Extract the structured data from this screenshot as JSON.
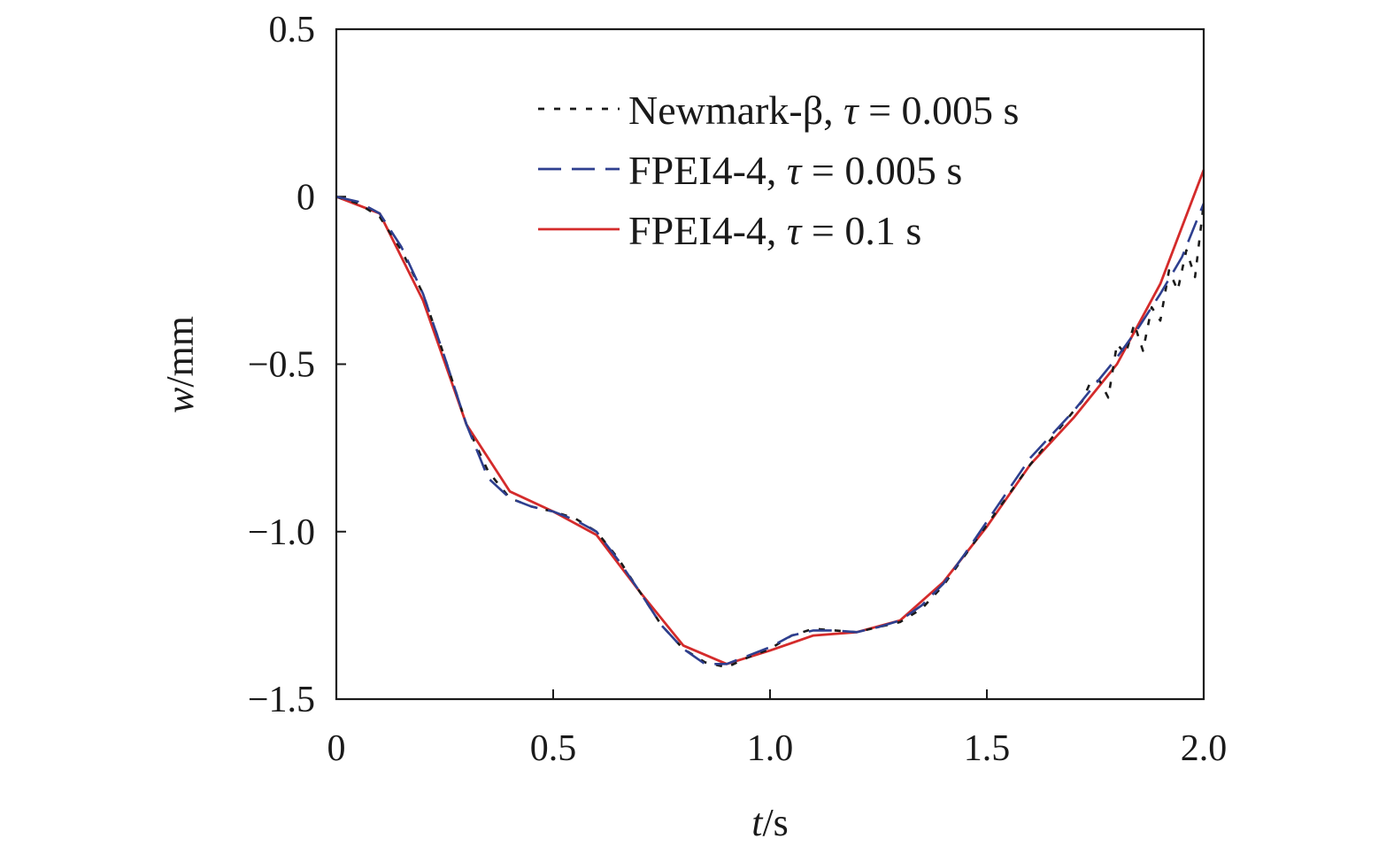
{
  "chart_data": {
    "type": "line",
    "title": "",
    "xlabel": {
      "var": "t",
      "unit": "/s"
    },
    "ylabel": {
      "var": "w",
      "unit": "/mm"
    },
    "xlim": [
      0,
      2.0
    ],
    "ylim": [
      -1.5,
      0.5
    ],
    "xticks": [
      0,
      0.5,
      1.0,
      1.5,
      2.0
    ],
    "xtick_labels": [
      "0",
      "0.5",
      "1.0",
      "1.5",
      "2.0"
    ],
    "yticks": [
      0.5,
      0,
      -0.5,
      -1.0,
      -1.5
    ],
    "ytick_labels": [
      "0.5",
      "0",
      "−0.5",
      "−1.0",
      "−1.5"
    ],
    "grid": false,
    "legend_position": "top-right",
    "series": [
      {
        "name": "Newmark-β, τ = 0.005 s",
        "label_parts": [
          "Newmark-β, ",
          "τ",
          " = 0.005 s"
        ],
        "color": "#1a1a1a",
        "style": "dotted",
        "x": [
          0,
          0.05,
          0.1,
          0.15,
          0.2,
          0.25,
          0.3,
          0.35,
          0.4,
          0.45,
          0.5,
          0.55,
          0.6,
          0.65,
          0.7,
          0.75,
          0.8,
          0.85,
          0.9,
          0.95,
          1.0,
          1.05,
          1.1,
          1.15,
          1.2,
          1.25,
          1.3,
          1.35,
          1.4,
          1.45,
          1.5,
          1.55,
          1.6,
          1.65,
          1.7,
          1.72,
          1.74,
          1.76,
          1.78,
          1.8,
          1.82,
          1.84,
          1.86,
          1.88,
          1.9,
          1.92,
          1.94,
          1.96,
          1.98,
          2.0
        ],
        "y": [
          0,
          -0.02,
          -0.06,
          -0.16,
          -0.29,
          -0.48,
          -0.68,
          -0.82,
          -0.9,
          -0.925,
          -0.94,
          -0.96,
          -1.0,
          -1.08,
          -1.18,
          -1.28,
          -1.35,
          -1.39,
          -1.405,
          -1.375,
          -1.35,
          -1.31,
          -1.29,
          -1.295,
          -1.3,
          -1.285,
          -1.27,
          -1.23,
          -1.16,
          -1.07,
          -0.98,
          -0.89,
          -0.8,
          -0.72,
          -0.64,
          -0.61,
          -0.55,
          -0.55,
          -0.6,
          -0.44,
          -0.47,
          -0.38,
          -0.46,
          -0.33,
          -0.37,
          -0.22,
          -0.28,
          -0.16,
          -0.24,
          -0.02
        ]
      },
      {
        "name": "FPEI4-4, τ = 0.005 s",
        "label_parts": [
          "FPEI4-4, ",
          "τ",
          " = 0.005 s"
        ],
        "color": "#2e3f8f",
        "style": "dashed",
        "x": [
          0,
          0.05,
          0.1,
          0.15,
          0.2,
          0.25,
          0.3,
          0.35,
          0.4,
          0.45,
          0.5,
          0.55,
          0.6,
          0.65,
          0.7,
          0.75,
          0.8,
          0.85,
          0.9,
          0.95,
          1.0,
          1.05,
          1.1,
          1.15,
          1.2,
          1.25,
          1.3,
          1.35,
          1.4,
          1.45,
          1.5,
          1.55,
          1.6,
          1.65,
          1.7,
          1.75,
          1.8,
          1.85,
          1.9,
          1.95,
          2.0
        ],
        "y": [
          0,
          -0.015,
          -0.05,
          -0.15,
          -0.29,
          -0.48,
          -0.68,
          -0.84,
          -0.9,
          -0.925,
          -0.94,
          -0.965,
          -1.0,
          -1.085,
          -1.18,
          -1.28,
          -1.35,
          -1.395,
          -1.395,
          -1.37,
          -1.345,
          -1.31,
          -1.295,
          -1.295,
          -1.3,
          -1.285,
          -1.265,
          -1.22,
          -1.155,
          -1.065,
          -0.97,
          -0.875,
          -0.78,
          -0.71,
          -0.64,
          -0.56,
          -0.48,
          -0.39,
          -0.29,
          -0.18,
          -0.02
        ]
      },
      {
        "name": "FPEI4-4, τ = 0.1 s",
        "label_parts": [
          "FPEI4-4, ",
          "τ",
          " = 0.1 s"
        ],
        "color": "#d42b2b",
        "style": "solid",
        "x": [
          0,
          0.1,
          0.2,
          0.3,
          0.4,
          0.5,
          0.6,
          0.7,
          0.8,
          0.9,
          1.0,
          1.1,
          1.2,
          1.3,
          1.4,
          1.5,
          1.6,
          1.7,
          1.8,
          1.9,
          2.0
        ],
        "y": [
          0,
          -0.05,
          -0.31,
          -0.68,
          -0.88,
          -0.94,
          -1.01,
          -1.18,
          -1.34,
          -1.395,
          -1.355,
          -1.31,
          -1.3,
          -1.265,
          -1.15,
          -0.985,
          -0.8,
          -0.66,
          -0.5,
          -0.26,
          0.08
        ]
      }
    ]
  }
}
